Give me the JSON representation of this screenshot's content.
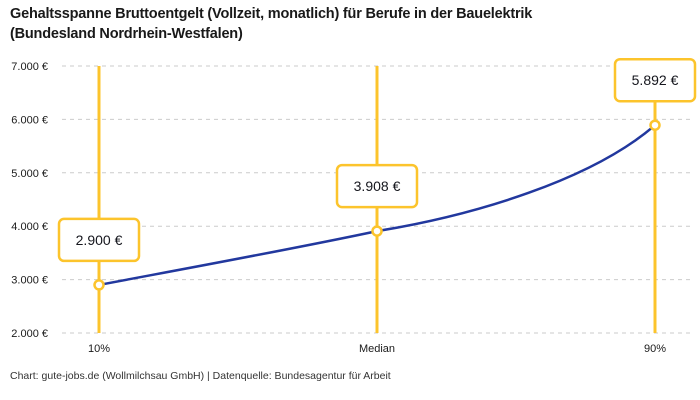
{
  "title": {
    "line1": "Gehaltsspanne Bruttoentgelt (Vollzeit, monatlich) für Berufe in der Bauelektrik",
    "line2": "(Bundesland Nordrhein-Westfalen)"
  },
  "footer": "Chart: gute-jobs.de (Wollmilchsau GmbH) | Datenquelle: Bundesagentur für Arbeit",
  "chart_data": {
    "type": "line",
    "title": "Gehaltsspanne Bruttoentgelt (Vollzeit, monatlich) für Berufe in der Bauelektrik (Bundesland Nordrhein-Westfalen)",
    "categories": [
      "10%",
      "Median",
      "90%"
    ],
    "values": [
      2900,
      3908,
      5892
    ],
    "value_labels": [
      "2.900 €",
      "3.908 €",
      "5.892 €"
    ],
    "ylim": [
      2000,
      7000
    ],
    "yticks": [
      7000,
      6000,
      5000,
      4000,
      3000,
      2000
    ],
    "ytick_labels": [
      "7.000 €",
      "6.000 €",
      "5.000 €",
      "4.000 €",
      "3.000 €",
      "2.000 €"
    ],
    "grid": "horizontal-dashed",
    "legend": "none",
    "colors": {
      "curve": "#22389E",
      "percentile_line": "#FCC42C",
      "gridline": "#CBCBCB",
      "axis_text": "#1A1A1A",
      "label_text": "#15161D",
      "label_box_fill": "#FFFFFF"
    }
  }
}
